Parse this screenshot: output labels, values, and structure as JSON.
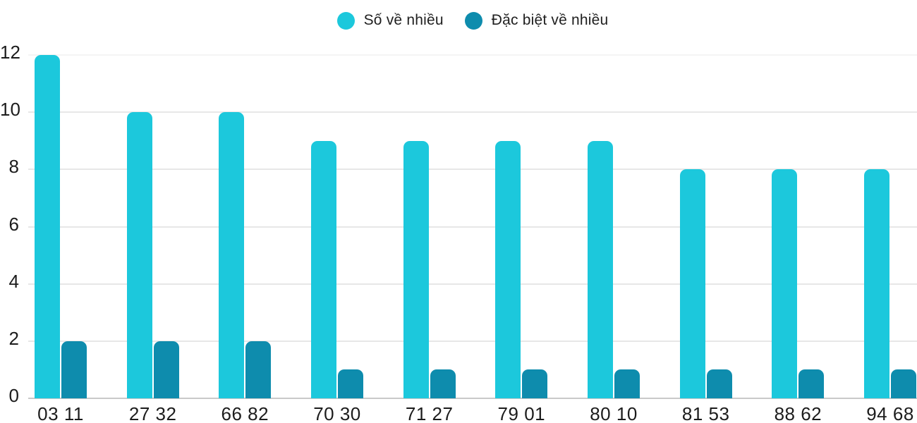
{
  "legend": {
    "items": [
      {
        "label": "Số về nhiều",
        "color": "#1cc8dc"
      },
      {
        "label": "Đặc biệt về nhiều",
        "color": "#0e8cad"
      }
    ]
  },
  "chart_data": {
    "type": "bar",
    "title": "",
    "xlabel": "",
    "ylabel": "",
    "categories": [
      "03 11",
      "27 32",
      "66 82",
      "70 30",
      "71 27",
      "79 01",
      "80 10",
      "81 53",
      "88 62",
      "94 68"
    ],
    "series": [
      {
        "name": "Số về nhiều",
        "color": "#1cc8dc",
        "values": [
          12,
          10,
          10,
          9,
          9,
          9,
          9,
          8,
          8,
          8
        ]
      },
      {
        "name": "Đặc biệt về nhiều",
        "color": "#0e8cad",
        "values": [
          2,
          2,
          2,
          1,
          1,
          1,
          1,
          1,
          1,
          1
        ]
      }
    ],
    "ylim": [
      0,
      12
    ],
    "yticks": [
      0,
      2,
      4,
      6,
      8,
      10,
      12
    ],
    "grid": true,
    "legend_position": "top-center",
    "text_color": "#1c1c1c",
    "gridline_color": "#e7e7e7",
    "axisline_color": "#c9c9c9"
  }
}
